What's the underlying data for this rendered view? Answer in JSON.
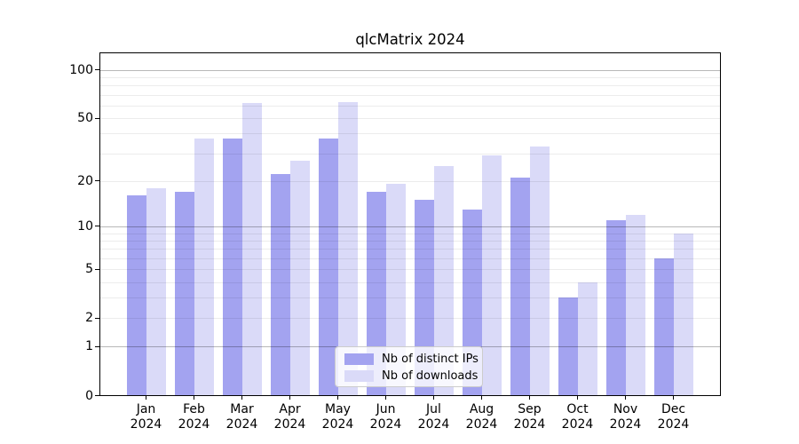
{
  "chart_data": {
    "type": "bar",
    "title": "qlcMatrix 2024",
    "x": {
      "months": [
        "Jan",
        "Feb",
        "Mar",
        "Apr",
        "May",
        "Jun",
        "Jul",
        "Aug",
        "Sep",
        "Oct",
        "Nov",
        "Dec"
      ],
      "year": "2024"
    },
    "series": [
      {
        "name": "Nb of distinct IPs",
        "color": "#a3a3f0",
        "values": [
          16,
          17,
          37,
          22,
          37,
          17,
          15,
          13,
          21,
          3,
          11,
          6
        ]
      },
      {
        "name": "Nb of downloads",
        "color": "#dadaf8",
        "values": [
          18,
          37,
          62,
          27,
          63,
          19,
          25,
          29,
          33,
          4,
          12,
          9
        ]
      }
    ],
    "yaxis": {
      "scale": "log1p",
      "tick_labels": [
        0,
        1,
        2,
        5,
        10,
        20,
        50,
        100
      ],
      "range": [
        0,
        128
      ]
    },
    "grid": {
      "major_lines": [
        1,
        10,
        100
      ],
      "minor_lines": [
        2,
        3,
        4,
        5,
        6,
        7,
        8,
        9,
        20,
        30,
        40,
        50,
        60,
        70,
        80,
        90
      ],
      "major_color": "rgba(0,0,0,0.28)",
      "minor_color": "rgba(0,0,0,0.075)"
    },
    "legend_position": "lower center",
    "background": "#ffffff"
  }
}
